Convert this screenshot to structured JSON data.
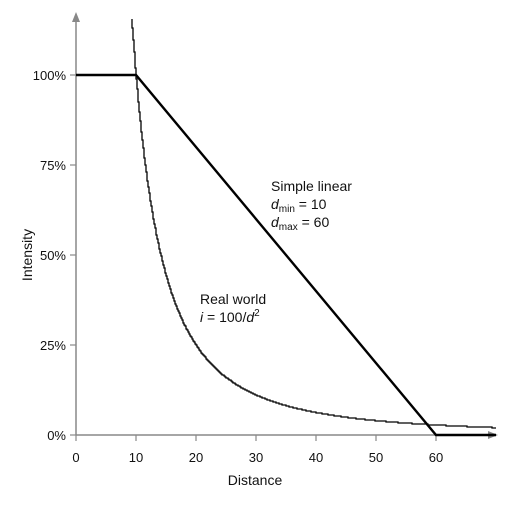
{
  "chart_data": {
    "type": "line",
    "xlabel": "Distance",
    "ylabel": "Intensity",
    "xlim": [
      0,
      70
    ],
    "ylim": [
      0,
      1.15
    ],
    "x_ticks": [
      0,
      10,
      20,
      30,
      40,
      50,
      60
    ],
    "y_ticks": [
      {
        "value": 0,
        "label": "0%"
      },
      {
        "value": 0.25,
        "label": "25%"
      },
      {
        "value": 0.5,
        "label": "50%"
      },
      {
        "value": 0.75,
        "label": "75%"
      },
      {
        "value": 1.0,
        "label": "100%"
      }
    ],
    "grid": false,
    "legend": "none",
    "series": [
      {
        "id": "simple-linear",
        "points": [
          [
            0,
            1.0
          ],
          [
            10,
            1.0
          ],
          [
            60,
            0.0
          ],
          [
            70,
            0.0
          ]
        ],
        "stroke_color": "#000000"
      },
      {
        "id": "real-world",
        "function": "i = 100/d^2",
        "x_start": 9.3,
        "x_end": 70,
        "stroke_color": "#000000"
      }
    ],
    "annotations": {
      "simple_linear": {
        "title": "Simple linear",
        "line1_var": "d",
        "line1_sub": "min",
        "line1_val": " = 10",
        "line2_var": "d",
        "line2_sub": "max",
        "line2_val": " = 60"
      },
      "real_world": {
        "title": "Real world",
        "formula_var": "i",
        "formula_mid": " = 100/",
        "formula_den": "d",
        "formula_exp": "2"
      }
    }
  }
}
